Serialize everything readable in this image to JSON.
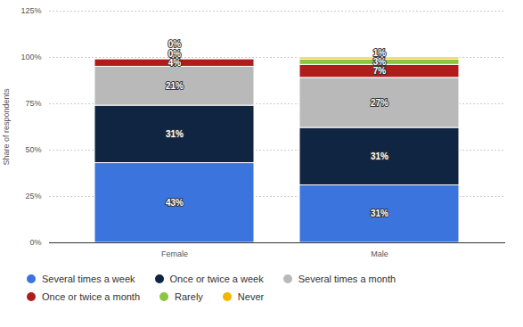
{
  "chart_data": {
    "type": "bar",
    "stacked": true,
    "data_labels": true,
    "grid": true,
    "legend": "bottom",
    "y_label": "Share of respondents",
    "categories": [
      "Female",
      "Male"
    ],
    "ylim": [
      0,
      125
    ],
    "yticks": [
      {
        "value": 0,
        "label": "0%"
      },
      {
        "value": 25,
        "label": "25%"
      },
      {
        "value": 50,
        "label": "50%"
      },
      {
        "value": 75,
        "label": "75%"
      },
      {
        "value": 100,
        "label": "100%"
      },
      {
        "value": 125,
        "label": "125%"
      }
    ],
    "series": [
      {
        "name": "Several times a week",
        "color": "#3a74dc",
        "values": [
          43,
          31
        ],
        "value_labels": [
          "43%",
          "31%"
        ]
      },
      {
        "name": "Once or twice a week",
        "color": "#0f2541",
        "values": [
          31,
          31
        ],
        "value_labels": [
          "31%",
          "31%"
        ]
      },
      {
        "name": "Several times a month",
        "color": "#b9b9b9",
        "values": [
          21,
          27
        ],
        "value_labels": [
          "21%",
          "27%"
        ]
      },
      {
        "name": "Once or twice a month",
        "color": "#b01c1c",
        "values": [
          4,
          7
        ],
        "value_labels": [
          "4%",
          "7%"
        ]
      },
      {
        "name": "Rarely",
        "color": "#8cc63f",
        "values": [
          0,
          3
        ],
        "value_labels": [
          "0%",
          "3%"
        ]
      },
      {
        "name": "Never",
        "color": "#f4b400",
        "values": [
          0,
          1
        ],
        "value_labels": [
          "0%",
          "1%"
        ]
      }
    ]
  }
}
